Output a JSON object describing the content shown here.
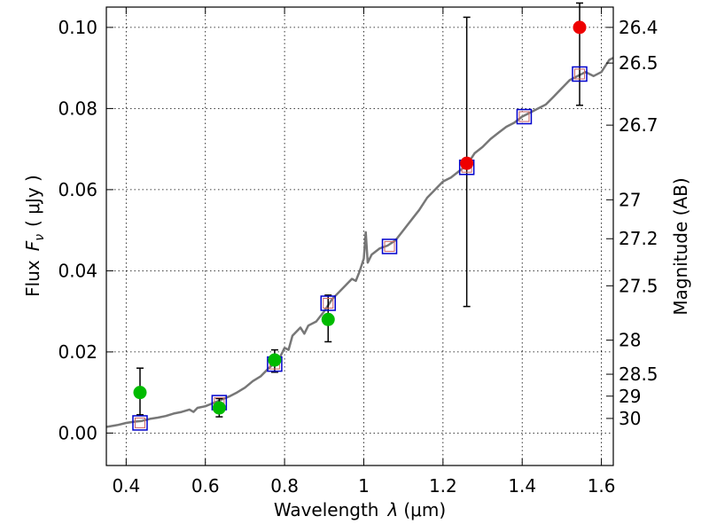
{
  "chart_data": {
    "type": "scatter",
    "xlabel_prefix": "Wavelength",
    "xlabel_symbol": "λ",
    "xlabel_unit": "(μm)",
    "ylabel_prefix": "Flux",
    "ylabel_symbol": "F",
    "ylabel_subscript": "ν",
    "ylabel_unit": "( μJy )",
    "y2label": "Magnitude (AB)",
    "xlim": [
      0.35,
      1.63
    ],
    "ylim": [
      -0.008,
      0.105
    ],
    "grid": true,
    "x_ticks": [
      {
        "value": 0.4,
        "label": "0.4"
      },
      {
        "value": 0.6,
        "label": "0.6"
      },
      {
        "value": 0.8,
        "label": "0.8"
      },
      {
        "value": 1.0,
        "label": "1"
      },
      {
        "value": 1.2,
        "label": "1.2"
      },
      {
        "value": 1.4,
        "label": "1.4"
      },
      {
        "value": 1.6,
        "label": "1.6"
      }
    ],
    "y_ticks": [
      {
        "value": 0.0,
        "label": "0.00"
      },
      {
        "value": 0.02,
        "label": "0.02"
      },
      {
        "value": 0.04,
        "label": "0.04"
      },
      {
        "value": 0.06,
        "label": "0.06"
      },
      {
        "value": 0.08,
        "label": "0.08"
      },
      {
        "value": 0.1,
        "label": "0.10"
      }
    ],
    "y2_ticks": [
      {
        "flux": 0.1,
        "label": "26.4"
      },
      {
        "flux": 0.0912,
        "label": "26.5"
      },
      {
        "flux": 0.0759,
        "label": "26.7"
      },
      {
        "flux": 0.0575,
        "label": "27"
      },
      {
        "flux": 0.0479,
        "label": "27.2"
      },
      {
        "flux": 0.0363,
        "label": "27.5"
      },
      {
        "flux": 0.0229,
        "label": "28"
      },
      {
        "flux": 0.0145,
        "label": "28.5"
      },
      {
        "flux": 0.0091,
        "label": "29"
      },
      {
        "flux": 0.0036,
        "label": "30"
      }
    ],
    "colors": {
      "template": "#777777",
      "green": "#00bb00",
      "red": "#ee0000",
      "square": "#0000cc",
      "square_inner": "#cc6666",
      "errorbar": "#000000"
    },
    "template_spectrum": [
      [
        0.35,
        0.0015
      ],
      [
        0.38,
        0.002
      ],
      [
        0.4,
        0.0025
      ],
      [
        0.42,
        0.0028
      ],
      [
        0.44,
        0.003
      ],
      [
        0.46,
        0.0035
      ],
      [
        0.48,
        0.0038
      ],
      [
        0.5,
        0.0042
      ],
      [
        0.52,
        0.0048
      ],
      [
        0.54,
        0.0052
      ],
      [
        0.56,
        0.0058
      ],
      [
        0.57,
        0.0052
      ],
      [
        0.58,
        0.0062
      ],
      [
        0.6,
        0.0066
      ],
      [
        0.62,
        0.0074
      ],
      [
        0.64,
        0.0082
      ],
      [
        0.66,
        0.009
      ],
      [
        0.68,
        0.01
      ],
      [
        0.7,
        0.0112
      ],
      [
        0.72,
        0.0128
      ],
      [
        0.74,
        0.014
      ],
      [
        0.76,
        0.016
      ],
      [
        0.78,
        0.0176
      ],
      [
        0.79,
        0.019
      ],
      [
        0.8,
        0.021
      ],
      [
        0.81,
        0.0205
      ],
      [
        0.82,
        0.024
      ],
      [
        0.84,
        0.026
      ],
      [
        0.85,
        0.0245
      ],
      [
        0.86,
        0.0265
      ],
      [
        0.88,
        0.0275
      ],
      [
        0.9,
        0.03
      ],
      [
        0.92,
        0.033
      ],
      [
        0.94,
        0.035
      ],
      [
        0.96,
        0.037
      ],
      [
        0.97,
        0.038
      ],
      [
        0.98,
        0.0375
      ],
      [
        0.99,
        0.04
      ],
      [
        1.0,
        0.043
      ],
      [
        1.005,
        0.0495
      ],
      [
        1.01,
        0.042
      ],
      [
        1.02,
        0.044
      ],
      [
        1.04,
        0.0455
      ],
      [
        1.06,
        0.0462
      ],
      [
        1.08,
        0.0475
      ],
      [
        1.1,
        0.05
      ],
      [
        1.12,
        0.0525
      ],
      [
        1.14,
        0.055
      ],
      [
        1.16,
        0.058
      ],
      [
        1.18,
        0.06
      ],
      [
        1.2,
        0.062
      ],
      [
        1.22,
        0.063
      ],
      [
        1.24,
        0.0645
      ],
      [
        1.26,
        0.066
      ],
      [
        1.28,
        0.069
      ],
      [
        1.3,
        0.0705
      ],
      [
        1.32,
        0.0725
      ],
      [
        1.34,
        0.074
      ],
      [
        1.36,
        0.0755
      ],
      [
        1.38,
        0.0765
      ],
      [
        1.4,
        0.078
      ],
      [
        1.42,
        0.079
      ],
      [
        1.44,
        0.08
      ],
      [
        1.46,
        0.081
      ],
      [
        1.48,
        0.083
      ],
      [
        1.5,
        0.085
      ],
      [
        1.52,
        0.087
      ],
      [
        1.54,
        0.088
      ],
      [
        1.56,
        0.089
      ],
      [
        1.58,
        0.088
      ],
      [
        1.6,
        0.089
      ],
      [
        1.62,
        0.092
      ],
      [
        1.63,
        0.0925
      ]
    ],
    "model_points": [
      {
        "x": 0.435,
        "y": 0.0025
      },
      {
        "x": 0.635,
        "y": 0.0075
      },
      {
        "x": 0.775,
        "y": 0.017
      },
      {
        "x": 0.91,
        "y": 0.032
      },
      {
        "x": 1.065,
        "y": 0.046
      },
      {
        "x": 1.26,
        "y": 0.0655
      },
      {
        "x": 1.405,
        "y": 0.078
      },
      {
        "x": 1.545,
        "y": 0.0885
      }
    ],
    "observed_points": [
      {
        "x": 0.435,
        "y": 0.01,
        "err_low": 0.0045,
        "err_high": 0.016,
        "color": "green"
      },
      {
        "x": 0.635,
        "y": 0.0062,
        "err_low": 0.004,
        "err_high": 0.0085,
        "color": "green"
      },
      {
        "x": 0.775,
        "y": 0.018,
        "err_low": 0.015,
        "err_high": 0.0205,
        "color": "green"
      },
      {
        "x": 0.91,
        "y": 0.028,
        "err_low": 0.0225,
        "err_high": 0.034,
        "color": "green"
      },
      {
        "x": 1.26,
        "y": 0.0665,
        "err_low": 0.0312,
        "err_high": 0.1025,
        "color": "red"
      },
      {
        "x": 1.545,
        "y": 0.1,
        "err_low": 0.0808,
        "err_high": 0.106,
        "color": "red"
      }
    ]
  }
}
